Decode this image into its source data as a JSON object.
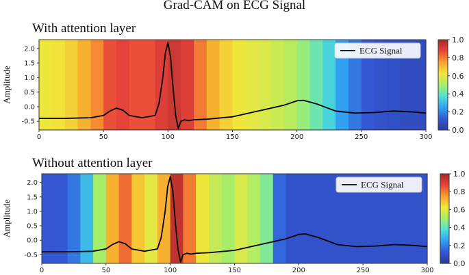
{
  "figure": {
    "title": "Grad-CAM on ECG Signal"
  },
  "colors": {
    "jet": [
      "#2b3a9a",
      "#3458d6",
      "#31a0f0",
      "#4fe0d6",
      "#a6ee6a",
      "#f2e63a",
      "#f8a02e",
      "#e8443a",
      "#a52a2a"
    ],
    "signal": "#000000"
  },
  "chart_data": [
    {
      "type": "line",
      "panel_title": "With attention layer",
      "ylabel": "Amplitude",
      "xlim": [
        0,
        300
      ],
      "ylim": [
        -0.8,
        2.3
      ],
      "xticks": [
        "0",
        "50",
        "100",
        "150",
        "200",
        "250",
        "300"
      ],
      "yticks": [
        "2.0",
        "1.5",
        "1.0",
        "0.5",
        "0.0",
        "-0.5"
      ],
      "legend": {
        "label": "ECG Signal",
        "placement": "top-right"
      },
      "colorbar": {
        "ticks": [
          "1.0",
          "0.8",
          "0.6",
          "0.4",
          "0.2",
          "0.0"
        ],
        "range": [
          0,
          1
        ]
      },
      "heatmap_x": [
        0,
        10,
        20,
        30,
        40,
        50,
        60,
        70,
        80,
        90,
        100,
        110,
        120,
        130,
        140,
        150,
        160,
        170,
        180,
        190,
        200,
        210,
        220,
        230,
        240,
        250,
        260,
        270,
        280,
        290
      ],
      "heatmap_values": [
        0.62,
        0.63,
        0.66,
        0.72,
        0.78,
        0.86,
        0.88,
        0.86,
        0.86,
        0.9,
        0.93,
        0.9,
        0.8,
        0.72,
        0.66,
        0.62,
        0.6,
        0.58,
        0.56,
        0.53,
        0.48,
        0.42,
        0.35,
        0.25,
        0.18,
        0.12,
        0.1,
        0.09,
        0.08,
        0.08
      ],
      "series": [
        {
          "x": [
            0,
            20,
            40,
            50,
            55,
            60,
            65,
            70,
            80,
            90,
            93,
            96,
            98,
            100,
            102,
            104,
            106,
            108,
            110,
            113,
            116,
            120,
            130,
            150,
            170,
            190,
            200,
            205,
            215,
            230,
            245,
            260,
            275,
            290,
            300
          ],
          "y": [
            -0.4,
            -0.4,
            -0.38,
            -0.3,
            -0.15,
            -0.05,
            -0.12,
            -0.3,
            -0.38,
            -0.3,
            0.1,
            1.0,
            1.85,
            2.2,
            1.7,
            0.6,
            -0.3,
            -0.75,
            -0.5,
            -0.45,
            -0.48,
            -0.45,
            -0.43,
            -0.35,
            -0.15,
            0.05,
            0.2,
            0.22,
            0.1,
            -0.15,
            -0.22,
            -0.2,
            -0.15,
            -0.18,
            -0.22
          ]
        }
      ]
    },
    {
      "type": "line",
      "panel_title": "Without attention layer",
      "ylabel": "Amplitude",
      "xlim": [
        0,
        300
      ],
      "ylim": [
        -0.8,
        2.3
      ],
      "xticks": [
        "0",
        "50",
        "100",
        "150",
        "200",
        "250",
        "300"
      ],
      "yticks": [
        "2.0",
        "1.5",
        "1.0",
        "0.5",
        "0.0",
        "-0.5"
      ],
      "legend": {
        "label": "ECG Signal",
        "placement": "top-right"
      },
      "colorbar": {
        "ticks": [
          "1.0",
          "0.8",
          "0.6",
          "0.4",
          "0.2",
          "0.0"
        ],
        "range": [
          0,
          1
        ]
      },
      "heatmap_x": [
        0,
        10,
        20,
        30,
        40,
        50,
        60,
        70,
        80,
        90,
        100,
        110,
        120,
        130,
        140,
        150,
        160,
        170,
        180,
        190,
        200,
        210,
        220,
        230,
        240,
        250,
        260,
        270,
        280,
        290
      ],
      "heatmap_values": [
        0.12,
        0.12,
        0.18,
        0.3,
        0.5,
        0.72,
        0.82,
        0.68,
        0.6,
        0.72,
        0.95,
        0.8,
        0.62,
        0.55,
        0.5,
        0.58,
        0.52,
        0.45,
        0.15,
        0.1,
        0.1,
        0.1,
        0.1,
        0.1,
        0.1,
        0.1,
        0.1,
        0.1,
        0.1,
        0.1
      ],
      "series": [
        {
          "x": [
            0,
            20,
            40,
            50,
            55,
            60,
            65,
            70,
            80,
            90,
            93,
            96,
            98,
            100,
            102,
            104,
            106,
            108,
            110,
            113,
            116,
            120,
            130,
            150,
            170,
            190,
            200,
            205,
            215,
            230,
            245,
            260,
            275,
            290,
            300
          ],
          "y": [
            -0.4,
            -0.4,
            -0.38,
            -0.3,
            -0.15,
            -0.05,
            -0.12,
            -0.3,
            -0.38,
            -0.3,
            0.1,
            1.0,
            1.85,
            2.2,
            1.7,
            0.6,
            -0.3,
            -0.75,
            -0.5,
            -0.45,
            -0.48,
            -0.45,
            -0.43,
            -0.35,
            -0.15,
            0.05,
            0.2,
            0.22,
            0.1,
            -0.15,
            -0.22,
            -0.2,
            -0.15,
            -0.18,
            -0.22
          ]
        }
      ]
    }
  ]
}
